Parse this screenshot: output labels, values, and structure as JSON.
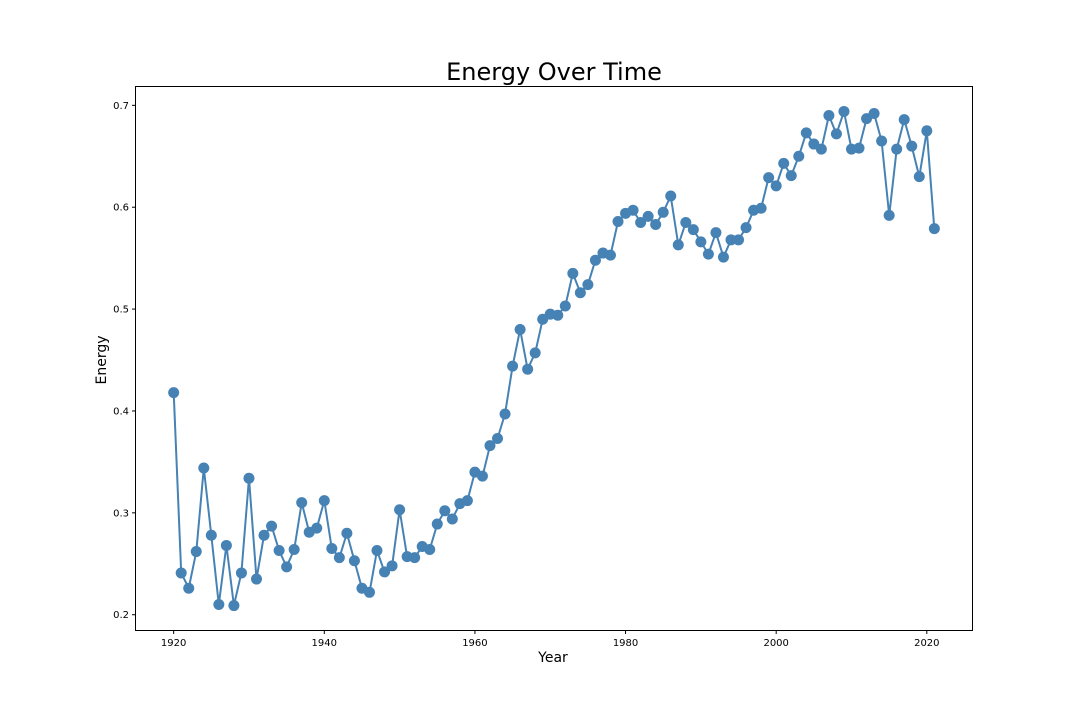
{
  "chart_data": {
    "type": "line",
    "title": "Energy Over Time",
    "xlabel": "Year",
    "ylabel": "Energy",
    "xlim": [
      1915,
      2026
    ],
    "ylim": [
      0.185,
      0.718
    ],
    "xticks": [
      1920,
      1940,
      1960,
      1980,
      2000,
      2020
    ],
    "yticks": [
      0.2,
      0.3,
      0.4,
      0.5,
      0.6,
      0.7
    ],
    "ytick_labels": [
      "0.2",
      "0.3",
      "0.4",
      "0.5",
      "0.6",
      "0.7"
    ],
    "grid": false,
    "color": "#4682b4",
    "marker": "circle",
    "series": [
      {
        "x": [
          1920,
          1921,
          1922,
          1923,
          1924,
          1925,
          1926,
          1927,
          1928,
          1929,
          1930,
          1931,
          1932,
          1933,
          1934,
          1935,
          1936,
          1937,
          1938,
          1939,
          1940,
          1941,
          1942,
          1943,
          1944,
          1945,
          1946,
          1947,
          1948,
          1949,
          1950,
          1951,
          1952,
          1953,
          1954,
          1955,
          1956,
          1957,
          1958,
          1959,
          1960,
          1961,
          1962,
          1963,
          1964,
          1965,
          1966,
          1967,
          1968,
          1969,
          1970,
          1971,
          1972,
          1973,
          1974,
          1975,
          1976,
          1977,
          1978,
          1979,
          1980,
          1981,
          1982,
          1983,
          1984,
          1985,
          1986,
          1987,
          1988,
          1989,
          1990,
          1991,
          1992,
          1993,
          1994,
          1995,
          1996,
          1997,
          1998,
          1999,
          2000,
          2001,
          2002,
          2003,
          2004,
          2005,
          2006,
          2007,
          2008,
          2009,
          2010,
          2011,
          2012,
          2013,
          2014,
          2015,
          2016,
          2017,
          2018,
          2019,
          2020,
          2021
        ],
        "y": [
          0.418,
          0.241,
          0.226,
          0.262,
          0.344,
          0.278,
          0.21,
          0.268,
          0.209,
          0.241,
          0.334,
          0.235,
          0.278,
          0.287,
          0.263,
          0.247,
          0.264,
          0.31,
          0.281,
          0.285,
          0.312,
          0.265,
          0.256,
          0.28,
          0.253,
          0.226,
          0.222,
          0.263,
          0.242,
          0.248,
          0.303,
          0.257,
          0.256,
          0.267,
          0.264,
          0.289,
          0.302,
          0.294,
          0.309,
          0.312,
          0.34,
          0.336,
          0.366,
          0.373,
          0.397,
          0.444,
          0.48,
          0.441,
          0.457,
          0.49,
          0.495,
          0.494,
          0.503,
          0.535,
          0.516,
          0.524,
          0.548,
          0.555,
          0.553,
          0.586,
          0.594,
          0.597,
          0.585,
          0.591,
          0.583,
          0.595,
          0.611,
          0.563,
          0.585,
          0.578,
          0.566,
          0.554,
          0.575,
          0.551,
          0.568,
          0.568,
          0.58,
          0.597,
          0.599,
          0.629,
          0.621,
          0.643,
          0.631,
          0.65,
          0.673,
          0.662,
          0.657,
          0.69,
          0.672,
          0.694,
          0.657,
          0.658,
          0.687,
          0.692,
          0.665,
          0.592,
          0.657,
          0.686,
          0.66,
          0.63,
          0.675,
          0.579
        ]
      }
    ]
  }
}
